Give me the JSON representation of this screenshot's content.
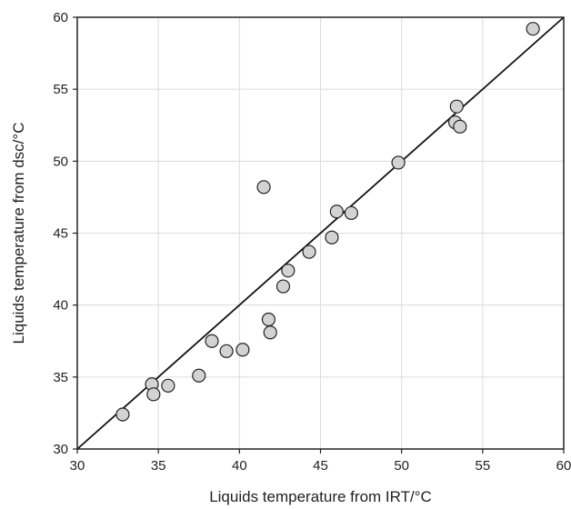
{
  "chart_data": {
    "type": "scatter",
    "title": "",
    "xlabel": "Liquids temperature from IRT/°C",
    "ylabel": "Liquids temperature from dsc/°C",
    "xlim": [
      30,
      60
    ],
    "ylim": [
      30,
      60
    ],
    "xticks": [
      30,
      35,
      40,
      45,
      50,
      55,
      60
    ],
    "yticks": [
      30,
      35,
      40,
      45,
      50,
      55,
      60
    ],
    "grid": true,
    "reference_line": {
      "from": [
        30,
        30
      ],
      "to": [
        60,
        60
      ]
    },
    "marker_fill": "#d3d3d3",
    "marker_edge": "#222222",
    "points": [
      {
        "x": 32.8,
        "y": 32.4
      },
      {
        "x": 34.6,
        "y": 34.5
      },
      {
        "x": 34.7,
        "y": 33.8
      },
      {
        "x": 35.6,
        "y": 34.4
      },
      {
        "x": 37.5,
        "y": 35.1
      },
      {
        "x": 38.3,
        "y": 37.5
      },
      {
        "x": 39.2,
        "y": 36.8
      },
      {
        "x": 40.2,
        "y": 36.9
      },
      {
        "x": 41.5,
        "y": 48.2
      },
      {
        "x": 41.8,
        "y": 39.0
      },
      {
        "x": 41.9,
        "y": 38.1
      },
      {
        "x": 42.7,
        "y": 41.3
      },
      {
        "x": 43.0,
        "y": 42.4
      },
      {
        "x": 44.3,
        "y": 43.7
      },
      {
        "x": 45.7,
        "y": 44.7
      },
      {
        "x": 46.0,
        "y": 46.5
      },
      {
        "x": 46.9,
        "y": 46.4
      },
      {
        "x": 49.8,
        "y": 49.9
      },
      {
        "x": 53.3,
        "y": 52.7
      },
      {
        "x": 53.4,
        "y": 53.8
      },
      {
        "x": 53.6,
        "y": 52.4
      },
      {
        "x": 58.1,
        "y": 59.2
      }
    ]
  }
}
